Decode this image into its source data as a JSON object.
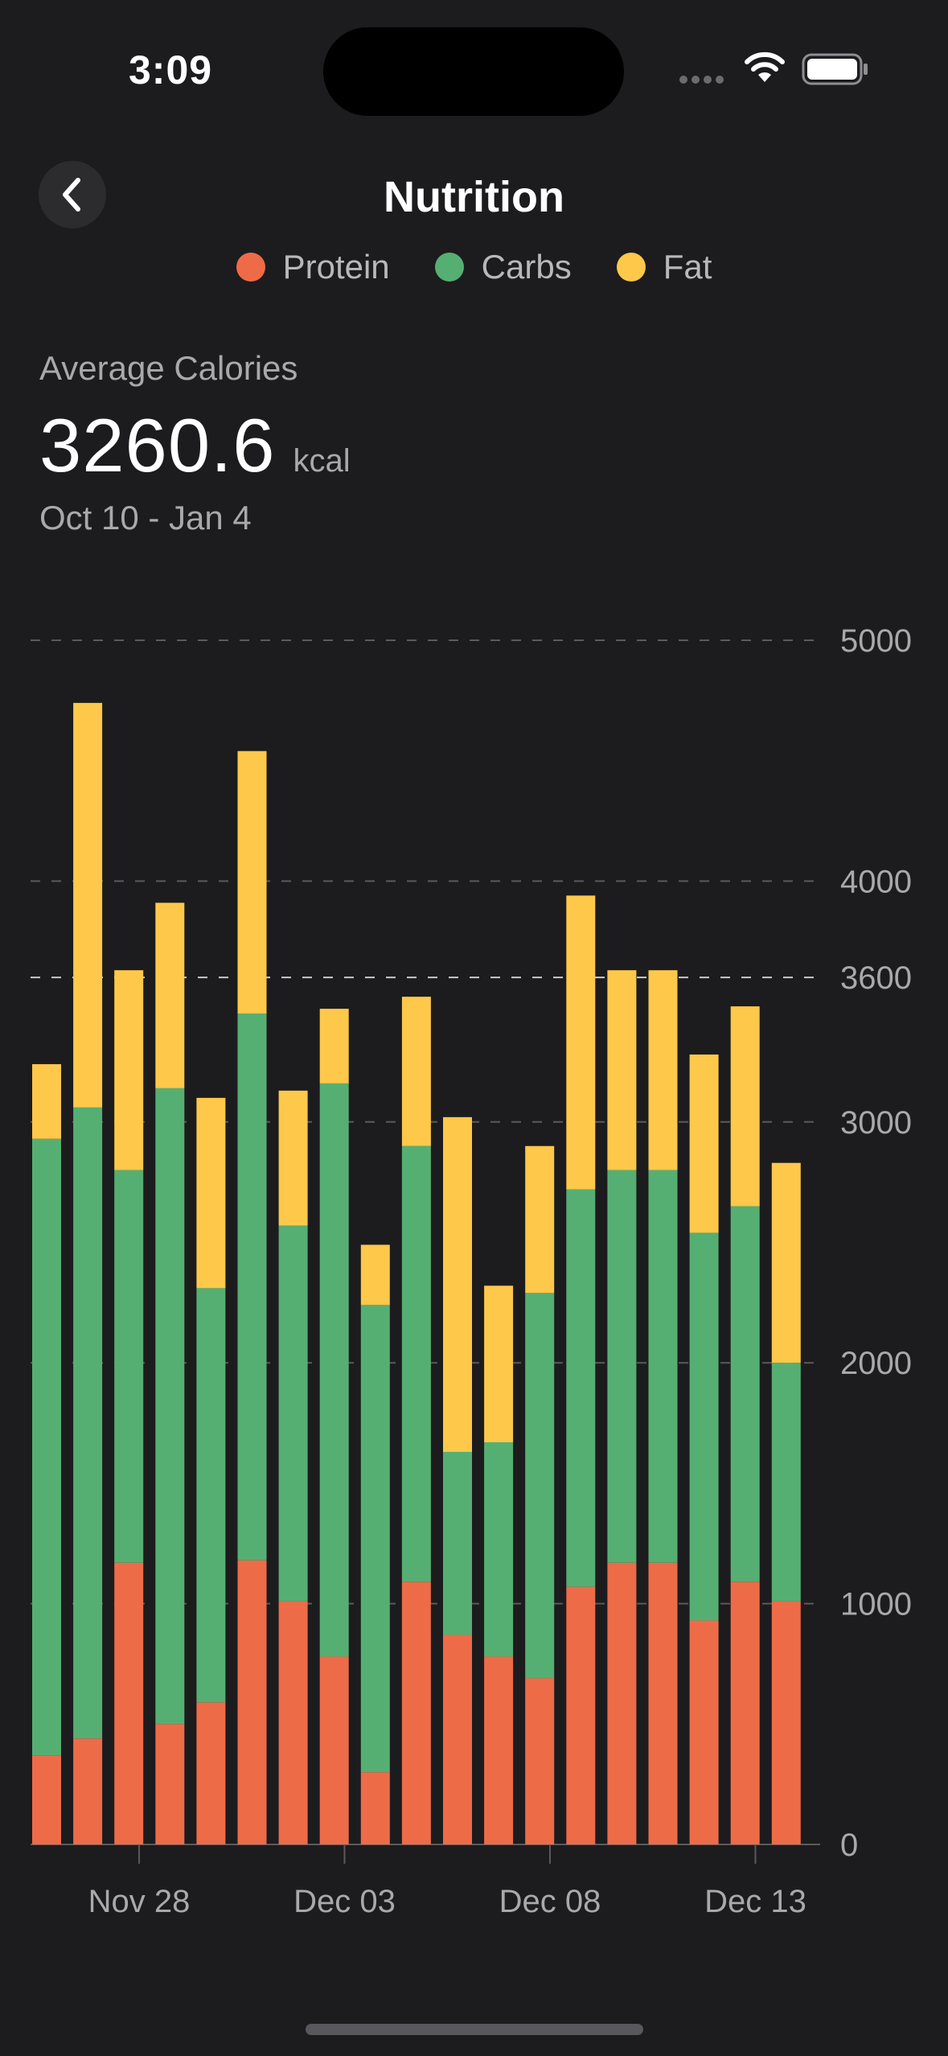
{
  "status_bar": {
    "time": "3:09"
  },
  "header": {
    "title": "Nutrition",
    "back_icon": "chevron-left-icon"
  },
  "legend": [
    {
      "label": "Protein",
      "color": "#ee6b48"
    },
    {
      "label": "Carbs",
      "color": "#56af72"
    },
    {
      "label": "Fat",
      "color": "#fec84a"
    }
  ],
  "summary": {
    "label": "Average Calories",
    "value": "3260.6",
    "unit": "kcal",
    "range": "Oct 10 - Jan 4"
  },
  "chart_data": {
    "type": "bar",
    "stacked": true,
    "y_ticks": [
      0,
      1000,
      2000,
      3000,
      4000,
      5000
    ],
    "reference_line": 3600,
    "reference_label": "3600",
    "ylim": [
      0,
      5000
    ],
    "x_tick_labels": [
      "Nov 28",
      "Dec 03",
      "Dec 08",
      "Dec 13"
    ],
    "x_tick_bar_positions": [
      2.25,
      7.25,
      12.25,
      17.25
    ],
    "grid": true,
    "series": [
      {
        "name": "Protein",
        "color": "#ee6b48",
        "values": [
          370,
          440,
          1170,
          500,
          590,
          1180,
          1010,
          780,
          300,
          1090,
          870,
          780,
          690,
          1070,
          1170,
          1170,
          930,
          1090,
          1010
        ]
      },
      {
        "name": "Carbs",
        "color": "#56af72",
        "values": [
          2560,
          2620,
          1630,
          2640,
          1720,
          2270,
          1560,
          2380,
          1940,
          1810,
          760,
          890,
          1600,
          1650,
          1630,
          1630,
          1610,
          1560,
          990
        ]
      },
      {
        "name": "Fat",
        "color": "#fec84a",
        "values": [
          310,
          1680,
          830,
          770,
          790,
          1090,
          560,
          310,
          250,
          620,
          1390,
          650,
          610,
          1220,
          830,
          830,
          740,
          830,
          830
        ]
      }
    ]
  }
}
